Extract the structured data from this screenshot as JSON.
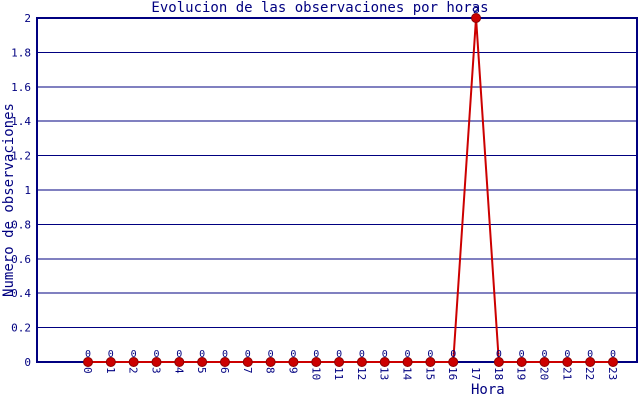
{
  "colors": {
    "text": "#000080",
    "axis": "#000080",
    "grid": "#000080",
    "line": "#cc0000",
    "marker_fill": "#cc0000",
    "marker_border": "#8b0000",
    "background": "#ffffff"
  },
  "chart_data": {
    "type": "line",
    "title": "Evolucion de las observaciones por horas",
    "xlabel": "Hora",
    "ylabel": "Numero de observaciones",
    "x_tick_labels": [
      "0",
      "1",
      "2",
      "3",
      "4",
      "5",
      "6",
      "7",
      "8",
      "9",
      "10",
      "11",
      "12",
      "13",
      "14",
      "15",
      "16",
      "17",
      "18",
      "19",
      "20",
      "21",
      "22",
      "23"
    ],
    "values": [
      0,
      0,
      0,
      0,
      0,
      0,
      0,
      0,
      0,
      0,
      0,
      0,
      0,
      0,
      0,
      0,
      0,
      2,
      0,
      0,
      0,
      0,
      0,
      0
    ],
    "point_labels": [
      "0",
      "0",
      "0",
      "0",
      "0",
      "0",
      "0",
      "0",
      "0",
      "0",
      "0",
      "0",
      "0",
      "0",
      "0",
      "0",
      "0",
      "2",
      "0",
      "0",
      "0",
      "0",
      "0",
      "0"
    ],
    "ytick_values": [
      0,
      0.2,
      0.4,
      0.6,
      0.8,
      1,
      1.2,
      1.4,
      1.6,
      1.8,
      2
    ],
    "ytick_labels": [
      "0",
      "0.2",
      "0.4",
      "0.6",
      "0.8",
      "1",
      "1.2",
      "1.4",
      "1.6",
      "1.8",
      "2"
    ],
    "ylim": [
      0,
      2
    ],
    "grid": true,
    "legend": "none"
  }
}
